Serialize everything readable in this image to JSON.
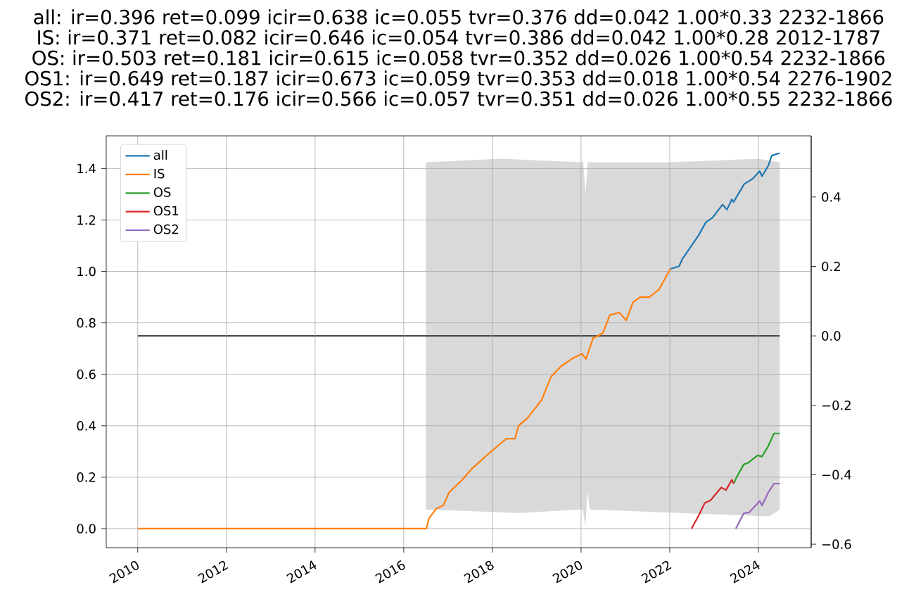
{
  "chart_data": {
    "type": "line",
    "title": "all: ir=0.396 ret=0.099 icir=0.638 ic=0.055 tvr=0.376 dd=0.042 1.00*0.33 2232-1866",
    "annotations": [
      "IS: ir=0.371 ret=0.082 icir=0.646 ic=0.054 tvr=0.386 dd=0.042 1.00*0.28 2012-1787",
      "OS: ir=0.503 ret=0.181 icir=0.615 ic=0.058 tvr=0.352 dd=0.026 1.00*0.54 2232-1866",
      "OS1: ir=0.649 ret=0.187 icir=0.673 ic=0.059 tvr=0.353 dd=0.018 1.00*0.54 2276-1902",
      "OS2: ir=0.417 ret=0.176 icir=0.566 ic=0.057 tvr=0.351 dd=0.026 1.00*0.55 2232-1866"
    ],
    "xlim": [
      2009.29,
      2025.19
    ],
    "ylim": [
      -0.074,
      1.527
    ],
    "y2lim": [
      -0.61,
      0.576
    ],
    "xticks": [
      2010,
      2012,
      2014,
      2016,
      2018,
      2020,
      2022,
      2024
    ],
    "yticks": [
      {
        "value": 0,
        "label": "0.0"
      },
      {
        "value": 0.2,
        "label": "0.2"
      },
      {
        "value": 0.4,
        "label": "0.4"
      },
      {
        "value": 0.6,
        "label": "0.6"
      },
      {
        "value": 0.8,
        "label": "0.8"
      },
      {
        "value": 1.0,
        "label": "1.0"
      },
      {
        "value": 1.2,
        "label": "1.2"
      },
      {
        "value": 1.4,
        "label": "1.4"
      }
    ],
    "y2ticks": [
      {
        "value": -0.6,
        "label": "−0.6"
      },
      {
        "value": -0.4,
        "label": "−0.4"
      },
      {
        "value": -0.2,
        "label": "−0.2"
      },
      {
        "value": 0,
        "label": "0.0"
      },
      {
        "value": 0.2,
        "label": "0.2"
      },
      {
        "value": 0.4,
        "label": "0.4"
      }
    ],
    "grid": true,
    "legend": "top left",
    "series": [
      {
        "name": "all",
        "color": "#1f77b4",
        "x": [
          2022.02,
          2022.21,
          2022.29,
          2022.65,
          2022.81,
          2022.97,
          2023.19,
          2023.29,
          2023.4,
          2023.44,
          2023.68,
          2023.87,
          2024.03,
          2024.08,
          2024.22,
          2024.3,
          2024.48
        ],
        "values": [
          1.01,
          1.02,
          1.05,
          1.14,
          1.19,
          1.21,
          1.26,
          1.24,
          1.28,
          1.27,
          1.34,
          1.36,
          1.39,
          1.37,
          1.41,
          1.45,
          1.46
        ]
      },
      {
        "name": "IS",
        "color": "#ff7f0e",
        "x": [
          2010,
          2016.51,
          2016.57,
          2016.73,
          2016.89,
          2017.02,
          2017.32,
          2017.52,
          2017.84,
          2018.11,
          2018.32,
          2018.51,
          2018.59,
          2018.79,
          2019.11,
          2019.32,
          2019.54,
          2019.79,
          2020.02,
          2020.11,
          2020.27,
          2020.49,
          2020.65,
          2020.86,
          2021.02,
          2021.17,
          2021.33,
          2021.54,
          2021.76,
          2021.98,
          2022.02
        ],
        "values": [
          0,
          0,
          0.04,
          0.077,
          0.09,
          0.14,
          0.19,
          0.23,
          0.28,
          0.32,
          0.35,
          0.35,
          0.4,
          0.43,
          0.5,
          0.59,
          0.63,
          0.66,
          0.68,
          0.66,
          0.74,
          0.76,
          0.83,
          0.84,
          0.81,
          0.88,
          0.9,
          0.9,
          0.93,
          1.0,
          1.01
        ]
      },
      {
        "name": "OS",
        "color": "#2ca02c",
        "x": [
          2023.44,
          2023.51,
          2023.67,
          2023.76,
          2023.98,
          2024.08,
          2024.22,
          2024.35,
          2024.48
        ],
        "values": [
          0.175,
          0.2,
          0.25,
          0.255,
          0.285,
          0.28,
          0.32,
          0.37,
          0.37
        ]
      },
      {
        "name": "OS1",
        "color": "#d62728",
        "x": [
          2022.49,
          2022.65,
          2022.79,
          2022.92,
          2023.16,
          2023.27,
          2023.4,
          2023.44
        ],
        "values": [
          0,
          0.05,
          0.1,
          0.11,
          0.16,
          0.15,
          0.19,
          0.175
        ]
      },
      {
        "name": "OS2",
        "color": "#9467bd",
        "x": [
          2023.49,
          2023.67,
          2023.79,
          2024.03,
          2024.08,
          2024.22,
          2024.35,
          2024.48
        ],
        "values": [
          0,
          0.06,
          0.063,
          0.107,
          0.09,
          0.14,
          0.175,
          0.175
        ]
      },
      {
        "type": "area",
        "axis": "y2",
        "color": "#d9d9d9",
        "x": [
          2016.5,
          2018.2,
          2020.05,
          2020.1,
          2020.15,
          2022.0,
          2024.0,
          2024.48
        ],
        "values": [
          0.5,
          0.51,
          0.5,
          0.41,
          0.5,
          0.5,
          0.51,
          0.5
        ]
      },
      {
        "type": "area",
        "axis": "y2",
        "color": "#d9d9d9",
        "x": [
          2016.5,
          2018.6,
          2020.04,
          2020.1,
          2020.14,
          2020.2,
          2024.25,
          2024.48
        ],
        "values": [
          -0.5,
          -0.51,
          -0.5,
          -0.55,
          -0.45,
          -0.5,
          -0.52,
          -0.5
        ]
      },
      {
        "type": "line",
        "axis": "y2",
        "color": "#4d4d4d",
        "x": [
          2010,
          2024.48
        ],
        "values": [
          0,
          0
        ]
      }
    ]
  }
}
